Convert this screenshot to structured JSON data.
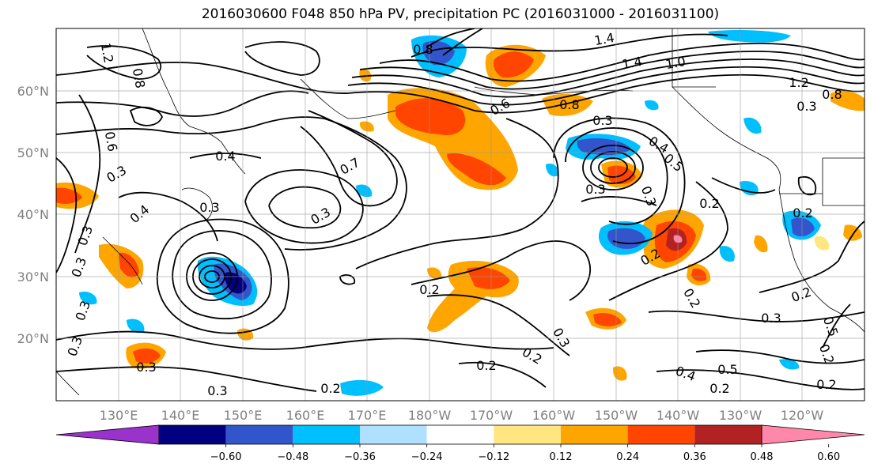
{
  "title": "2016030600 F048 850 hPa PV, precipitation PC (2016031000 - 2016031100)",
  "map": {
    "lat_ticks": [
      "60°N",
      "50°N",
      "40°N",
      "30°N",
      "20°N"
    ],
    "lon_ticks": [
      "130°E",
      "140°E",
      "150°E",
      "160°E",
      "170°E",
      "180°W",
      "170°W",
      "160°W",
      "150°W",
      "140°W",
      "130°W",
      "120°W"
    ],
    "contour_labels": [
      "1.2",
      "0.8",
      "0.6",
      "0.3",
      "0.4",
      "0.3",
      "0.3",
      "0.3",
      "0.3",
      "0.3",
      "0.4",
      "0.3",
      "0.7",
      "0.3",
      "0.8",
      "0.6",
      "0.8",
      "1.4",
      "1.4",
      "1.0",
      "0.3",
      "0.4",
      "0.5",
      "0.3",
      "0.3",
      "0.2",
      "0.2",
      "0.2",
      "0.3",
      "0.2",
      "0.2",
      "0.2",
      "0.2",
      "0.2",
      "0.3",
      "0.5",
      "0.4",
      "0.2",
      "0.2",
      "0.2",
      "0.5",
      "0.3",
      "0.2",
      "1.2",
      "0.8",
      "0.3"
    ]
  },
  "colorbar": {
    "tick_labels": [
      "−0.60",
      "−0.48",
      "−0.36",
      "−0.24",
      "−0.12",
      "0.12",
      "0.24",
      "0.36",
      "0.48",
      "0.60"
    ],
    "colors": [
      "#9933cc",
      "#000080",
      "#3355cc",
      "#00bfff",
      "#b0e0ff",
      "#ffffff",
      "#ffe680",
      "#ffa500",
      "#ff4500",
      "#b22222",
      "#ff88aa"
    ]
  }
}
